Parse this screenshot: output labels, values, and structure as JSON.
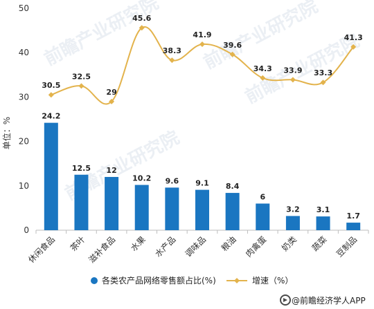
{
  "chart_data": {
    "type": "bar+line",
    "categories": [
      "休闲食品",
      "茶叶",
      "滋补食品",
      "水果",
      "水产品",
      "调味品",
      "粮油",
      "肉禽蛋",
      "奶类",
      "蔬菜",
      "豆制品"
    ],
    "series": [
      {
        "name": "各类农产品网络零售额占比(%)",
        "type": "bar",
        "values": [
          24.2,
          12.5,
          12,
          10.2,
          9.6,
          9.1,
          8.4,
          6,
          3.2,
          3.1,
          1.7
        ],
        "labels": [
          "24.2",
          "12.5",
          "12",
          "10.2",
          "9.6",
          "9.1",
          "8.4",
          "6",
          "3.2",
          "3.1",
          "1.7"
        ]
      },
      {
        "name": "增速（%）",
        "type": "line",
        "values": [
          30.5,
          32.5,
          29,
          45.6,
          38.3,
          41.9,
          39.6,
          34.3,
          33.9,
          33.3,
          41.3
        ],
        "labels": [
          "30.5",
          "32.5",
          "29",
          "45.6",
          "38.3",
          "41.9",
          "39.6",
          "34.3",
          "33.9",
          "33.3",
          "41.3"
        ]
      }
    ],
    "ylabel": "单位：%",
    "ylim": [
      0,
      50
    ],
    "yticks": [
      "0",
      "10",
      "20",
      "30",
      "40",
      "50"
    ],
    "grid": false,
    "legend_position": "bottom"
  },
  "colors": {
    "bar": "#1a76c1",
    "line": "#e3b34c",
    "axis": "#bdbdbd"
  },
  "watermark": "前瞻产业研究院",
  "credit": {
    "text": "@前瞻经济学人APP",
    "icon": "logo-icon"
  }
}
